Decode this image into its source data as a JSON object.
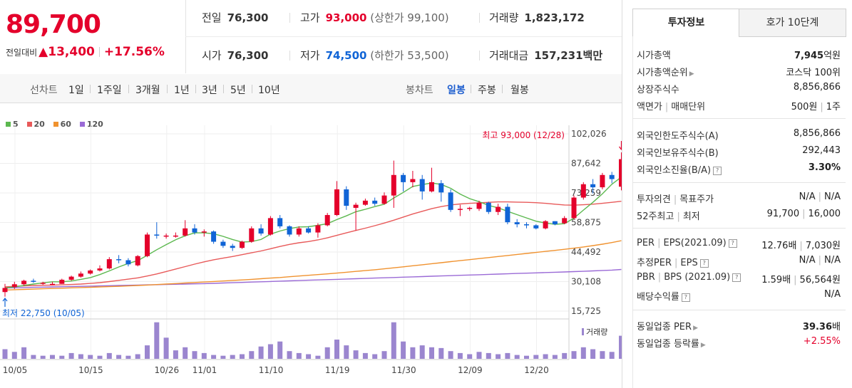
{
  "quote": {
    "price": "89,700",
    "change_label": "전일대비",
    "change_arrow": "▲",
    "change_value": "13,400",
    "change_pct": "+17.56%",
    "prev_close_label": "전일",
    "prev_close": "76,300",
    "high_label": "고가",
    "high": "93,000",
    "upper_limit": "(상한가 99,100)",
    "volume_label": "거래량",
    "volume": "1,823,172",
    "open_label": "시가",
    "open": "76,300",
    "low_label": "저가",
    "low": "74,500",
    "lower_limit": "(하한가 53,500)",
    "amount_label": "거래대금",
    "amount": "157,231",
    "amount_unit": "백만"
  },
  "toolbar": {
    "line_chart_label": "선차트",
    "line_periods": [
      "1일",
      "1주일",
      "3개월",
      "1년",
      "3년",
      "5년",
      "10년"
    ],
    "candle_chart_label": "봉차트",
    "candle_periods": [
      "일봉",
      "주봉",
      "월봉"
    ],
    "active_candle": "일봉"
  },
  "colors": {
    "up": "#e4002b",
    "down": "#1064d6",
    "ma5": "#5cb84f",
    "ma20": "#e85a5a",
    "ma60": "#f0922f",
    "ma120": "#9a6ad6",
    "volume": "#9b86cf"
  },
  "chart_data": {
    "type": "candlestick",
    "legend": [
      "5",
      "20",
      "60",
      "120"
    ],
    "y_ticks": [
      "102,026",
      "87,642",
      "73,259",
      "58,875",
      "44,492",
      "30,108",
      "15,725"
    ],
    "ylim": [
      15725,
      102026
    ],
    "x_ticks": [
      "10/05",
      "10/15",
      "10/26",
      "11/01",
      "11/10",
      "11/19",
      "11/30",
      "12/09",
      "12/20"
    ],
    "x_tick_index": [
      0,
      8,
      16,
      20,
      27,
      34,
      41,
      48,
      55
    ],
    "max_annotation": "최고 93,000 (12/28)",
    "min_annotation": "최저 22,750 (10/05)",
    "volume_label": "거래량",
    "candles": [
      [
        25000,
        29000,
        22750,
        27000
      ],
      [
        27500,
        30000,
        26500,
        28800
      ],
      [
        28800,
        31000,
        28000,
        30500
      ],
      [
        30500,
        31500,
        29500,
        30000
      ],
      [
        29000,
        30000,
        28500,
        29500
      ],
      [
        29000,
        30000,
        28500,
        29000
      ],
      [
        29000,
        31500,
        29000,
        31000
      ],
      [
        31000,
        33000,
        30500,
        32500
      ],
      [
        32500,
        35000,
        32000,
        34000
      ],
      [
        34000,
        36000,
        33500,
        35500
      ],
      [
        35500,
        38000,
        35000,
        36500
      ],
      [
        36500,
        42000,
        36000,
        41000
      ],
      [
        41000,
        43000,
        39000,
        40500
      ],
      [
        40500,
        41500,
        37500,
        38500
      ],
      [
        38000,
        43000,
        37500,
        42500
      ],
      [
        42500,
        54000,
        42000,
        53000
      ],
      [
        53000,
        59000,
        51000,
        52500
      ],
      [
        52500,
        53500,
        51000,
        52500
      ],
      [
        52500,
        54000,
        51500,
        52500
      ],
      [
        52500,
        60000,
        52000,
        56000
      ],
      [
        56000,
        58000,
        53000,
        54000
      ],
      [
        54000,
        55500,
        52000,
        54500
      ],
      [
        54500,
        55000,
        48500,
        49500
      ],
      [
        49500,
        50500,
        46500,
        47500
      ],
      [
        47500,
        48500,
        45000,
        46500
      ],
      [
        46500,
        50000,
        46000,
        49500
      ],
      [
        49500,
        57000,
        49000,
        56000
      ],
      [
        56000,
        58000,
        52500,
        53500
      ],
      [
        53000,
        62000,
        52500,
        61000
      ],
      [
        61000,
        62500,
        56000,
        57000
      ],
      [
        57000,
        57500,
        52000,
        53000
      ],
      [
        53000,
        57000,
        52000,
        56000
      ],
      [
        56000,
        57000,
        53500,
        54000
      ],
      [
        54000,
        58500,
        51500,
        57500
      ],
      [
        57500,
        63500,
        57000,
        62500
      ],
      [
        62500,
        79000,
        62000,
        75000
      ],
      [
        75000,
        76500,
        65000,
        67000
      ],
      [
        66000,
        68500,
        55000,
        67500
      ],
      [
        67500,
        70500,
        67000,
        69500
      ],
      [
        69500,
        71000,
        67000,
        68000
      ],
      [
        68000,
        73500,
        67500,
        72000
      ],
      [
        72000,
        89000,
        66000,
        82000
      ],
      [
        82000,
        83000,
        74000,
        78500
      ],
      [
        78500,
        84000,
        76000,
        80000
      ],
      [
        80000,
        82000,
        70000,
        74000
      ],
      [
        74000,
        85500,
        73500,
        78500
      ],
      [
        78000,
        79500,
        69000,
        73500
      ],
      [
        73500,
        75000,
        64000,
        65000
      ],
      [
        65000,
        67500,
        62000,
        65500
      ],
      [
        65500,
        66500,
        64500,
        66000
      ],
      [
        65500,
        69500,
        64500,
        68500
      ],
      [
        68500,
        69000,
        63000,
        64000
      ],
      [
        64000,
        68000,
        62500,
        66500
      ],
      [
        66500,
        68000,
        58000,
        59000
      ],
      [
        59000,
        60500,
        56500,
        58000
      ],
      [
        58000,
        59000,
        56000,
        57500
      ],
      [
        57500,
        58000,
        55500,
        56000
      ],
      [
        56000,
        60000,
        55500,
        59500
      ],
      [
        59500,
        59500,
        57500,
        58000
      ],
      [
        58500,
        62000,
        58000,
        61000
      ],
      [
        61000,
        72000,
        60500,
        71000
      ],
      [
        71000,
        78500,
        70000,
        77500
      ],
      [
        77500,
        80000,
        73000,
        76000
      ],
      [
        76000,
        83000,
        75000,
        82000
      ],
      [
        82000,
        83500,
        78000,
        80000
      ],
      [
        76300,
        93000,
        74500,
        89700
      ]
    ],
    "ma5": [
      27000,
      27500,
      28200,
      28900,
      29500,
      30000,
      30000,
      30400,
      31200,
      32000,
      33500,
      35300,
      37200,
      38900,
      40300,
      42900,
      45600,
      48100,
      50500,
      52400,
      53800,
      53800,
      53400,
      52100,
      50600,
      49300,
      49600,
      50600,
      53200,
      54700,
      55900,
      56700,
      56800,
      57500,
      58300,
      60300,
      62100,
      64100,
      65300,
      66600,
      67800,
      70800,
      73500,
      76400,
      77300,
      78100,
      77400,
      75500,
      72700,
      70500,
      69000,
      67200,
      66000,
      64300,
      62700,
      61100,
      59500,
      58600,
      58000,
      58300,
      61000,
      64900,
      68700,
      72800,
      77500,
      81000
    ],
    "ma20": [
      27500,
      27800,
      28000,
      28200,
      28300,
      28400,
      28500,
      28700,
      28900,
      29200,
      29600,
      30100,
      30700,
      31300,
      31900,
      32800,
      33800,
      35000,
      36200,
      37400,
      38600,
      39700,
      40700,
      41500,
      42300,
      43200,
      44100,
      45000,
      46100,
      47200,
      48200,
      49000,
      49600,
      50400,
      51400,
      52600,
      53800,
      55000,
      56100,
      57300,
      58600,
      60000,
      61500,
      63000,
      64300,
      65600,
      66600,
      67400,
      67900,
      68200,
      68400,
      68700,
      68900,
      68900,
      68800,
      68700,
      68500,
      68200,
      67800,
      67400,
      67300,
      67500,
      67800,
      68200,
      68700,
      69200
    ],
    "ma60": [
      26000,
      26150,
      26300,
      26450,
      26600,
      26750,
      26900,
      27050,
      27200,
      27350,
      27500,
      27650,
      27800,
      28000,
      28200,
      28400,
      28650,
      28900,
      29150,
      29400,
      29650,
      29900,
      30150,
      30400,
      30650,
      30900,
      31200,
      31500,
      31800,
      32100,
      32450,
      32800,
      33150,
      33500,
      33850,
      34250,
      34650,
      35050,
      35450,
      35850,
      36300,
      36800,
      37300,
      37800,
      38300,
      38800,
      39300,
      39800,
      40300,
      40800,
      41300,
      41800,
      42300,
      42800,
      43300,
      43800,
      44300,
      44800,
      45300,
      45800,
      46350,
      46950,
      47600,
      48300,
      49100,
      50000
    ],
    "ma120": [
      27000,
      27100,
      27200,
      27300,
      27400,
      27500,
      27600,
      27700,
      27800,
      27900,
      28000,
      28100,
      28200,
      28300,
      28400,
      28500,
      28600,
      28700,
      28800,
      28900,
      29000,
      29100,
      29250,
      29400,
      29550,
      29700,
      29850,
      30000,
      30150,
      30300,
      30450,
      30600,
      30750,
      30900,
      31050,
      31200,
      31350,
      31500,
      31650,
      31800,
      31950,
      32100,
      32250,
      32400,
      32550,
      32700,
      32850,
      33000,
      33150,
      33300,
      33450,
      33600,
      33750,
      33900,
      34050,
      34200,
      34350,
      34500,
      34650,
      34800,
      34950,
      35100,
      35300,
      35500,
      35700,
      36000
    ],
    "volume": [
      0.25,
      0.18,
      0.3,
      0.1,
      0.08,
      0.1,
      0.08,
      0.15,
      0.12,
      0.1,
      0.08,
      0.15,
      0.1,
      0.08,
      0.12,
      0.35,
      0.95,
      0.55,
      0.22,
      0.3,
      0.2,
      0.15,
      0.1,
      0.08,
      0.1,
      0.12,
      0.2,
      0.32,
      0.38,
      0.45,
      0.2,
      0.15,
      0.12,
      0.08,
      0.3,
      0.5,
      0.35,
      0.22,
      0.15,
      0.12,
      0.2,
      0.95,
      0.45,
      0.3,
      0.35,
      0.3,
      0.28,
      0.2,
      0.15,
      0.12,
      0.18,
      0.15,
      0.12,
      0.15,
      0.1,
      0.08,
      0.1,
      0.12,
      0.1,
      0.15,
      0.2,
      0.3,
      0.25,
      0.2,
      0.18,
      0.6
    ]
  },
  "tabs": {
    "invest": "투자정보",
    "hoga": "호가 10단계"
  },
  "info": {
    "market_cap_label": "시가총액",
    "market_cap": "7,945",
    "market_cap_unit": "억원",
    "market_cap_rank_label": "시가총액순위",
    "market_cap_rank": "코스닥 100위",
    "shares_label": "상장주식수",
    "shares": "8,856,866",
    "par_label": "액면가",
    "trade_unit_label": "매매단위",
    "par_value": "500원",
    "trade_unit": "1주",
    "foreign_limit_label": "외국인한도주식수(A)",
    "foreign_limit": "8,856,866",
    "foreign_hold_label": "외국인보유주식수(B)",
    "foreign_hold": "292,443",
    "foreign_ratio_label": "외국인소진율(B/A)",
    "foreign_ratio": "3.30%",
    "opinion_label": "투자의견",
    "target_label": "목표주가",
    "opinion": "N/A",
    "target": "N/A",
    "week52_high_label": "52주최고",
    "week52_low_label": "최저",
    "week52_high": "91,700",
    "week52_low": "16,000",
    "per_label": "PER",
    "eps_label": "EPS(2021.09)",
    "per": "12.76배",
    "eps": "7,030원",
    "est_per_label": "추정PER",
    "est_eps_label": "EPS",
    "est_per": "N/A",
    "est_eps": "N/A",
    "pbr_label": "PBR",
    "bps_label": "BPS (2021.09)",
    "pbr": "1.59배",
    "bps": "56,564원",
    "dividend_label": "배당수익률",
    "dividend": "N/A",
    "sector_per_label": "동일업종 PER",
    "sector_per": "39.36",
    "sector_per_unit": "배",
    "sector_change_label": "동일업종 등락률",
    "sector_change": "+2.55%"
  }
}
